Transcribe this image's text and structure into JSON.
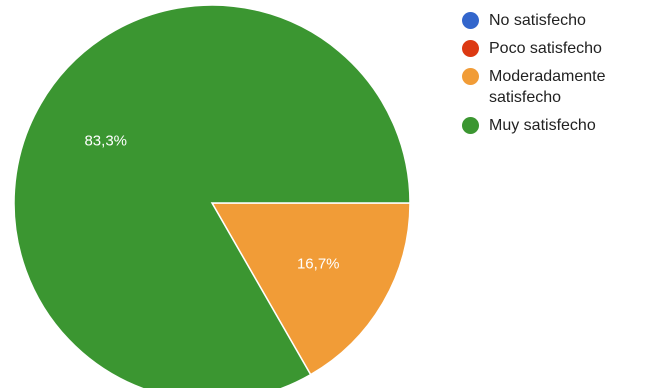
{
  "chart_data": {
    "type": "pie",
    "title": "",
    "legend_position": "right",
    "categories": [
      "No satisfecho",
      "Poco satisfecho",
      "Moderadamente satisfecho",
      "Muy satisfecho"
    ],
    "values": [
      0,
      0,
      16.7,
      83.3
    ],
    "colors": [
      "#3366cc",
      "#dc3912",
      "#f19c37",
      "#3b9631"
    ],
    "slice_labels": [
      "",
      "",
      "16,7%",
      "83,3%"
    ]
  }
}
